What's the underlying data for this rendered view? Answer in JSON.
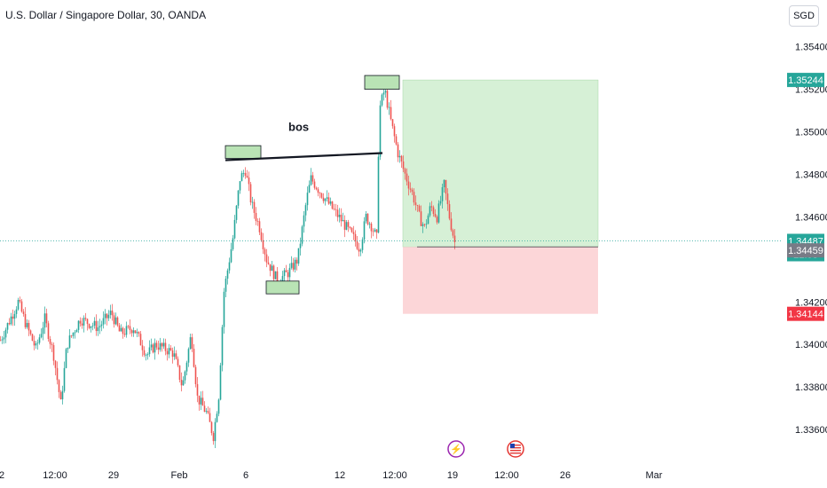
{
  "header": {
    "title": "U.S. Dollar / Singapore Dollar, 30, OANDA",
    "currency_button": "SGD"
  },
  "chart_data": {
    "type": "candlestick",
    "symbol": "USDSGD",
    "ylim": [
      1.3345,
      1.3562
    ],
    "y_ticks": [
      "1.33600",
      "1.33800",
      "1.34000",
      "1.34200",
      "1.34600",
      "1.34800",
      "1.35000",
      "1.35200",
      "1.35400"
    ],
    "x_ticks": [
      "2",
      "12:00",
      "29",
      "Feb",
      "6",
      "12",
      "12:00",
      "19",
      "12:00",
      "26",
      "Mar"
    ],
    "annotation": "bos",
    "price_badges": [
      {
        "label": "1.35244",
        "value": 1.35244,
        "color": "#26a69a"
      },
      {
        "label": "1.34487",
        "value": 1.34487,
        "color": "#26a69a"
      },
      {
        "label": "22:03",
        "value": null,
        "color": "#26a69a"
      },
      {
        "label": "1.34459",
        "value": 1.34459,
        "color": "#787b86"
      },
      {
        "label": "1.34144",
        "value": 1.34144,
        "color": "#f23645"
      }
    ],
    "current_price": 1.34487,
    "position": {
      "entry": 1.34459,
      "target": 1.35244,
      "stop": 1.34144
    },
    "colors": {
      "up": "#26a69a",
      "down": "#ef5350",
      "profit_zone": "#d6f0d6",
      "loss_zone": "#fcd6d8",
      "box_fill": "#b9e3b5"
    }
  }
}
